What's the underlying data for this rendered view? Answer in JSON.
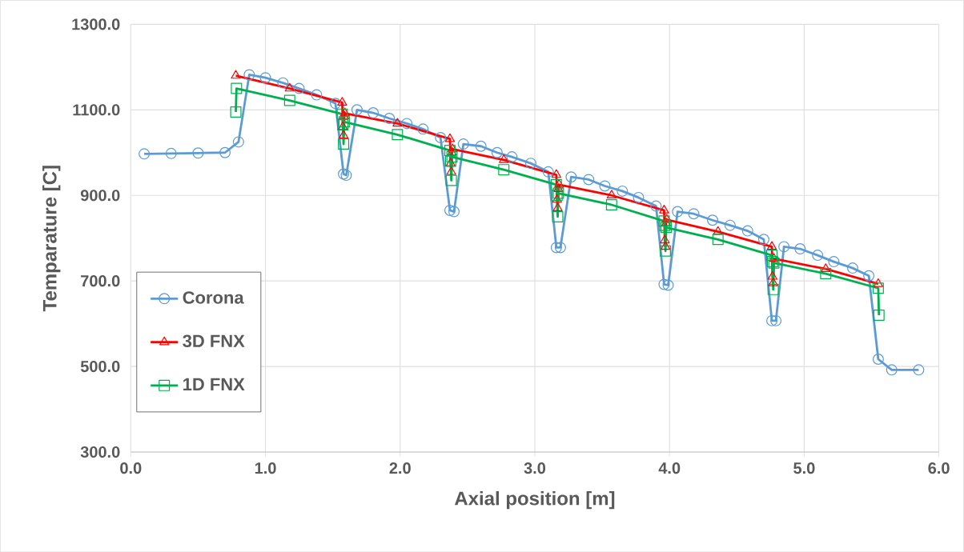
{
  "chart_data": {
    "type": "line",
    "xlabel": "Axial position [m]",
    "ylabel": "Temparature [C]",
    "xlim": [
      0,
      6
    ],
    "ylim": [
      300,
      1300
    ],
    "xticks": [
      {
        "value": 0,
        "label": "0.0"
      },
      {
        "value": 1,
        "label": "1.0"
      },
      {
        "value": 2,
        "label": "2.0"
      },
      {
        "value": 3,
        "label": "3.0"
      },
      {
        "value": 4,
        "label": "4.0"
      },
      {
        "value": 5,
        "label": "5.0"
      },
      {
        "value": 6,
        "label": "6.0"
      }
    ],
    "yticks": [
      {
        "value": 300,
        "label": "300.0"
      },
      {
        "value": 500,
        "label": "500.0"
      },
      {
        "value": 700,
        "label": "700.0"
      },
      {
        "value": 900,
        "label": "900.0"
      },
      {
        "value": 1100,
        "label": "1100.0"
      },
      {
        "value": 1300,
        "label": "1300.0"
      }
    ],
    "grid": true,
    "legend": "bottom left",
    "line_style": "solid",
    "series": [
      {
        "name": "Corona",
        "color": "#5b9bd5",
        "marker": "circle",
        "x": [
          0.1,
          0.3,
          0.5,
          0.7,
          0.8,
          0.88,
          1.0,
          1.13,
          1.25,
          1.38,
          1.52,
          1.58,
          1.6,
          1.68,
          1.8,
          1.92,
          2.05,
          2.17,
          2.3,
          2.37,
          2.4,
          2.47,
          2.6,
          2.72,
          2.83,
          2.97,
          3.1,
          3.16,
          3.19,
          3.27,
          3.4,
          3.52,
          3.65,
          3.77,
          3.9,
          3.96,
          3.99,
          4.06,
          4.18,
          4.32,
          4.45,
          4.58,
          4.7,
          4.76,
          4.79,
          4.85,
          4.97,
          5.1,
          5.22,
          5.36,
          5.48,
          5.55,
          5.65,
          5.85
        ],
        "values": [
          997,
          998,
          999,
          1000,
          1025,
          1182,
          1175,
          1163,
          1150,
          1135,
          1115,
          950,
          947,
          1100,
          1093,
          1080,
          1068,
          1055,
          1035,
          865,
          862,
          1020,
          1015,
          1000,
          990,
          975,
          955,
          778,
          778,
          943,
          937,
          922,
          910,
          895,
          875,
          692,
          690,
          862,
          857,
          842,
          830,
          817,
          797,
          607,
          607,
          780,
          775,
          760,
          745,
          730,
          712,
          517,
          492,
          492
        ]
      },
      {
        "name": "3D FNX",
        "color": "#ff0000",
        "marker": "triangle",
        "x": [
          0.78,
          1.18,
          1.57,
          1.575,
          1.58,
          1.585,
          1.59,
          1.98,
          2.37,
          2.375,
          2.38,
          2.385,
          2.39,
          2.77,
          3.16,
          3.165,
          3.17,
          3.175,
          3.18,
          3.57,
          3.96,
          3.965,
          3.97,
          3.975,
          3.98,
          4.36,
          4.76,
          4.765,
          4.77,
          4.775,
          5.16,
          5.55
        ],
        "values": [
          1180,
          1150,
          1117,
          1060,
          1040,
          1085,
          1092,
          1068,
          1032,
          975,
          955,
          1000,
          1008,
          983,
          948,
          890,
          870,
          915,
          925,
          900,
          865,
          795,
          780,
          835,
          843,
          815,
          780,
          710,
          695,
          752,
          728,
          693
        ]
      },
      {
        "name": "1D FNX",
        "color": "#00b050",
        "marker": "square",
        "x": [
          0.78,
          0.785,
          1.18,
          1.57,
          1.575,
          1.58,
          1.585,
          1.98,
          2.37,
          2.375,
          2.38,
          2.385,
          2.77,
          3.16,
          3.165,
          3.17,
          3.175,
          3.57,
          3.96,
          3.965,
          3.97,
          3.975,
          4.36,
          4.76,
          4.765,
          4.77,
          4.775,
          5.16,
          5.55,
          5.555
        ],
        "values": [
          1095,
          1150,
          1122,
          1090,
          1065,
          1020,
          1072,
          1042,
          1005,
          980,
          935,
          990,
          960,
          925,
          900,
          850,
          905,
          878,
          840,
          830,
          770,
          825,
          797,
          760,
          745,
          680,
          742,
          717,
          683,
          620
        ]
      }
    ]
  }
}
